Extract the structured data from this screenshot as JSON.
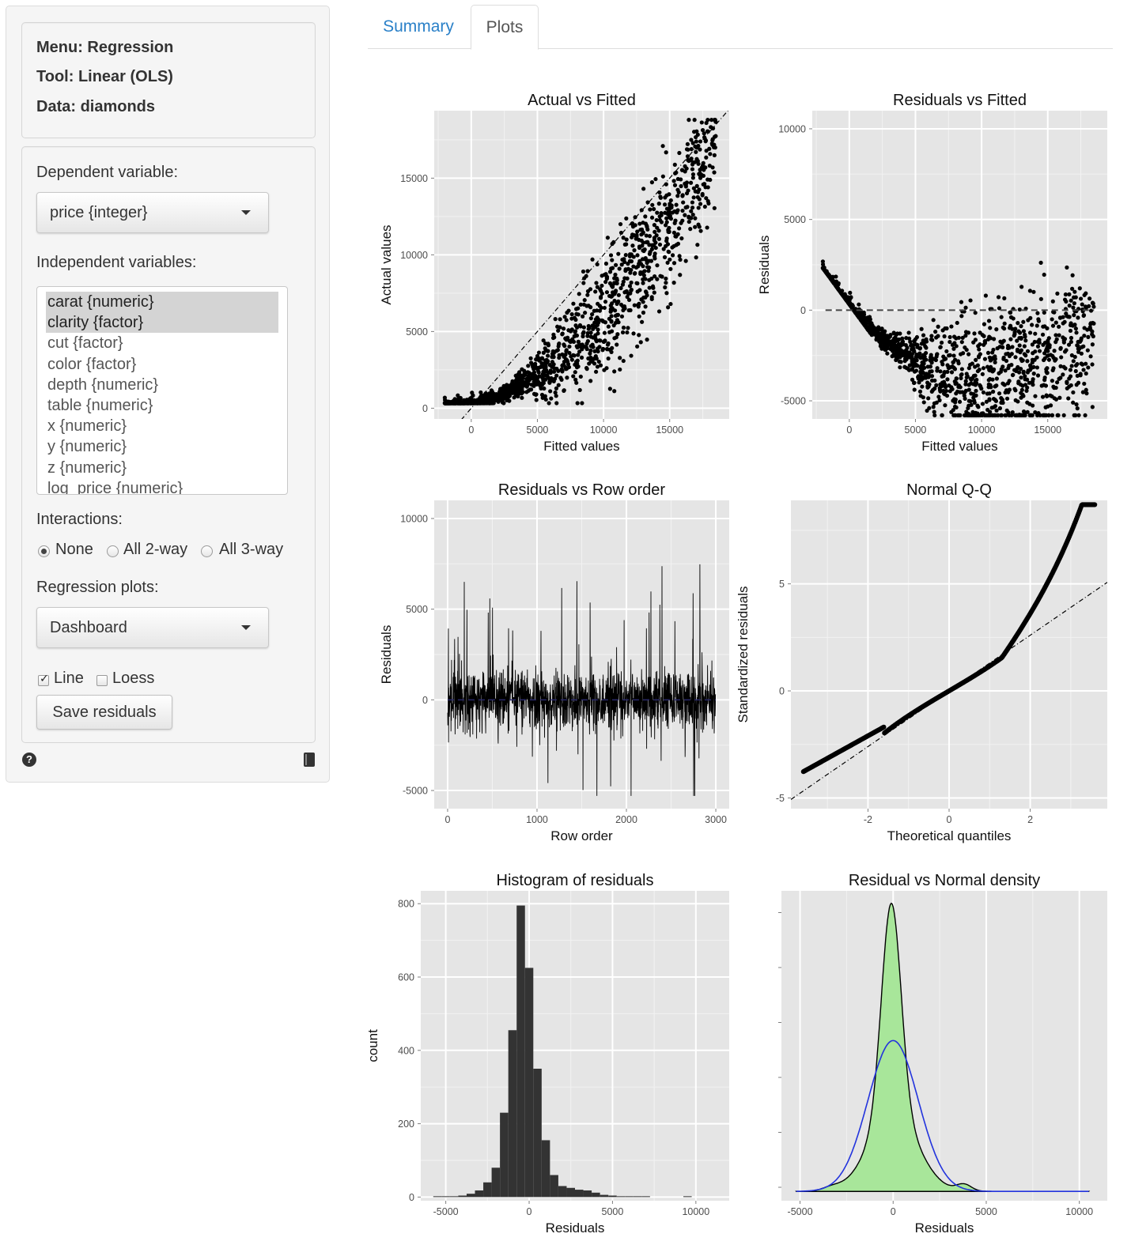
{
  "sidebar": {
    "info": {
      "menu": "Menu: Regression",
      "tool": "Tool: Linear (OLS)",
      "data": "Data: diamonds"
    },
    "dependent_label": "Dependent variable:",
    "dependent_value": "price {integer}",
    "independent_label": "Independent variables:",
    "independent_options": [
      {
        "label": "carat {numeric}",
        "selected": true
      },
      {
        "label": "clarity {factor}",
        "selected": true
      },
      {
        "label": "cut {factor}",
        "selected": false
      },
      {
        "label": "color {factor}",
        "selected": false
      },
      {
        "label": "depth {numeric}",
        "selected": false
      },
      {
        "label": "table {numeric}",
        "selected": false
      },
      {
        "label": "x {numeric}",
        "selected": false
      },
      {
        "label": "y {numeric}",
        "selected": false
      },
      {
        "label": "z {numeric}",
        "selected": false
      },
      {
        "label": "log_price {numeric}",
        "selected": false
      }
    ],
    "interactions_label": "Interactions:",
    "interactions": [
      {
        "label": "None",
        "checked": true
      },
      {
        "label": "All 2-way",
        "checked": false
      },
      {
        "label": "All 3-way",
        "checked": false
      }
    ],
    "plots_label": "Regression plots:",
    "plots_value": "Dashboard",
    "checkboxes": [
      {
        "label": "Line",
        "checked": true
      },
      {
        "label": "Loess",
        "checked": false
      }
    ],
    "save_button": "Save residuals",
    "icons": {
      "help": "help-icon",
      "report": "book-icon"
    }
  },
  "tabs": [
    {
      "label": "Summary",
      "active": false
    },
    {
      "label": "Plots",
      "active": true
    }
  ],
  "colors": {
    "panel_bg": "#e5e5e5",
    "grid": "#ffffff",
    "density_fill": "#a8e69a",
    "normal_line": "#2233dd",
    "tab_link": "#2a80c8"
  },
  "chart_data": [
    {
      "id": "actual_vs_fitted",
      "type": "scatter",
      "title": "Actual vs Fitted",
      "xlabel": "Fitted values",
      "ylabel": "Actual values",
      "xlim": [
        -2800,
        19500
      ],
      "ylim": [
        -700,
        19400
      ],
      "xticks": [
        0,
        5000,
        10000,
        15000
      ],
      "yticks": [
        0,
        5000,
        10000,
        15000
      ],
      "reference_line": "y = x (dash-dot)",
      "series": [
        {
          "values_description": "approx. 3000 points curving upward from (-2000, 300) to (18500, 18500)"
        }
      ]
    },
    {
      "id": "residuals_vs_fitted",
      "type": "scatter",
      "title": "Residuals vs Fitted",
      "xlabel": "Fitted values",
      "ylabel": "Residuals",
      "xlim": [
        -2800,
        19500
      ],
      "ylim": [
        -6000,
        11000
      ],
      "xticks": [
        0,
        5000,
        10000,
        15000
      ],
      "yticks": [
        -5000,
        0,
        5000,
        10000
      ],
      "reference_line": "y = 0 (dashed)"
    },
    {
      "id": "residuals_vs_row_order",
      "type": "line",
      "title": "Residuals vs Row order",
      "xlabel": "Row order",
      "ylabel": "Residuals",
      "xlim": [
        -150,
        3150
      ],
      "ylim": [
        -6000,
        11000
      ],
      "xticks": [
        0,
        1000,
        2000,
        3000
      ],
      "yticks": [
        -5000,
        0,
        5000,
        10000
      ]
    },
    {
      "id": "normal_qq",
      "type": "scatter",
      "title": "Normal Q-Q",
      "xlabel": "Theoretical quantiles",
      "ylabel": "Standardized residuals",
      "xlim": [
        -3.9,
        3.9
      ],
      "ylim": [
        -5.5,
        8.9
      ],
      "xticks": [
        -2,
        0,
        2
      ],
      "yticks": [
        -5,
        0,
        5
      ],
      "reference_line": "slope 1.3 (dash-dot)"
    },
    {
      "id": "histogram_residuals",
      "type": "bar",
      "title": "Histogram of residuals",
      "xlabel": "Residuals",
      "ylabel": "count",
      "xlim": [
        -6500,
        12000
      ],
      "ylim": [
        -10,
        835
      ],
      "xticks": [
        -5000,
        0,
        5000,
        10000
      ],
      "yticks": [
        0,
        200,
        400,
        600,
        800
      ],
      "bin_width": 500,
      "bins": [
        {
          "x": -5500,
          "count": 1
        },
        {
          "x": -5000,
          "count": 0
        },
        {
          "x": -4500,
          "count": 2
        },
        {
          "x": -4000,
          "count": 4
        },
        {
          "x": -3500,
          "count": 9
        },
        {
          "x": -3000,
          "count": 18
        },
        {
          "x": -2500,
          "count": 40
        },
        {
          "x": -2000,
          "count": 80
        },
        {
          "x": -1500,
          "count": 230
        },
        {
          "x": -1000,
          "count": 455
        },
        {
          "x": -500,
          "count": 795
        },
        {
          "x": 0,
          "count": 625
        },
        {
          "x": 500,
          "count": 350
        },
        {
          "x": 1000,
          "count": 155
        },
        {
          "x": 1500,
          "count": 60
        },
        {
          "x": 2000,
          "count": 30
        },
        {
          "x": 2500,
          "count": 25
        },
        {
          "x": 3000,
          "count": 20
        },
        {
          "x": 3500,
          "count": 18
        },
        {
          "x": 4000,
          "count": 12
        },
        {
          "x": 4500,
          "count": 6
        },
        {
          "x": 5000,
          "count": 4
        },
        {
          "x": 5500,
          "count": 2
        },
        {
          "x": 6000,
          "count": 1
        },
        {
          "x": 6500,
          "count": 0
        },
        {
          "x": 7000,
          "count": 1
        },
        {
          "x": 9500,
          "count": 1
        }
      ]
    },
    {
      "id": "residual_vs_normal_density",
      "type": "area",
      "title": "Residual vs Normal density",
      "xlabel": "Residuals",
      "ylabel": "",
      "xlim": [
        -6000,
        11500
      ],
      "xticks": [
        -5000,
        0,
        5000,
        10000
      ],
      "series": [
        {
          "kind": "kernel density of residuals"
        },
        {
          "kind": "normal density"
        }
      ]
    }
  ]
}
